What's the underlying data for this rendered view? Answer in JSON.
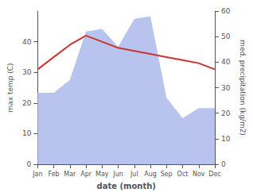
{
  "chart_data": {
    "type": "line",
    "xlabel": "date (month)",
    "ylabel": "max temp (C)",
    "y2label": "med. precipitation (kg/m2)",
    "categories": [
      "Jan",
      "Feb",
      "Mar",
      "Apr",
      "May",
      "Jun",
      "Jul",
      "Aug",
      "Sep",
      "Oct",
      "Nov",
      "Dec"
    ],
    "series": [
      {
        "type": "area",
        "axis": "y2",
        "color": "#b8c4ee",
        "values": [
          28,
          28,
          33,
          52,
          53,
          46,
          57,
          58,
          26,
          18,
          22,
          22
        ]
      },
      {
        "type": "line",
        "color": "#cc3333",
        "values": [
          31,
          35,
          39,
          42,
          40,
          38,
          37,
          36,
          35,
          34,
          33,
          31
        ]
      }
    ],
    "ylim": [
      0,
      50
    ],
    "yticks": [
      0,
      10,
      20,
      30,
      40
    ],
    "y2lim": [
      0,
      60
    ],
    "y2ticks": [
      0,
      10,
      20,
      30,
      40,
      50,
      60
    ],
    "grid": false,
    "background_color": "#ffffff"
  }
}
